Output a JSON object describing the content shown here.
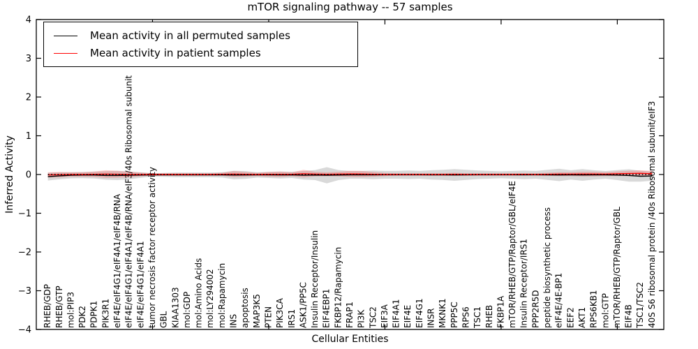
{
  "chart_data": {
    "type": "line",
    "title": "mTOR signaling pathway -- 57 samples",
    "xlabel": "Cellular Entities",
    "ylabel": "Inferred Activity",
    "ylim": [
      -4,
      4
    ],
    "yticks": [
      -4,
      -3,
      -2,
      -1,
      0,
      1,
      2,
      3,
      4
    ],
    "xlim": [
      0,
      54
    ],
    "xticks": [
      10,
      20,
      30,
      40,
      50
    ],
    "grid": false,
    "legend_position": "upper left",
    "zero_line": {
      "y": 0,
      "style": "dotted",
      "color": "#000000"
    },
    "colors": {
      "permuted": "#000000",
      "patient": "#ff0000",
      "permuted_band": "rgba(0,0,0,0.15)",
      "patient_band": "rgba(255,0,0,0.18)",
      "frame": "#000000",
      "background": "#ffffff"
    },
    "categories": [
      "RHEB/GDP",
      "RHEB/GTP",
      "mol:PIP3",
      "PDK2",
      "PDPK1",
      "PIK3R1",
      "eIF4E/eIF4G1/eIF4A1/eIF4B/RNA",
      "eIF4E/eIF4G1/eIF4A1/eIF4B/RNA/eIF3/40s Ribosomal subunit",
      "eIF4E/eIF4G1/eIF4A1",
      "tumor necrosis factor receptor activity",
      "GBL",
      "KIAA1303",
      "mol:GDP",
      "mol:Amino Acids",
      "mol:LY294002",
      "mol:Rapamycin",
      "INS",
      "apoptosis",
      "MAP3K5",
      "PTEN",
      "PIK3CA",
      "IRS1",
      "ASK1/PP5C",
      "Insulin Receptor/Insulin",
      "EIF4EBP1",
      "FKBP12/Rapamycin",
      "FRAP1",
      "PI3K",
      "TSC2",
      "EIF3A",
      "EIF4A1",
      "EIF4E",
      "EIF4G1",
      "INSR",
      "MKNK1",
      "PPP5C",
      "RPS6",
      "TSC1",
      "RHEB",
      "FKBP1A",
      "mTOR/RHEB/GTP/Raptor/GBL/eIF4E",
      "Insulin Receptor/IRS1",
      "PPP2R5D",
      "peptide biosynthetic process",
      "eIF4E/4E-BP1",
      "EEF2",
      "AKT1",
      "RPS6KB1",
      "mol:GTP",
      "mTOR/RHEB/GTP/Raptor/GBL",
      "EIF4B",
      "TSC1/TSC2",
      "40S S6 ribosomal protein /40s Ribosomal subunit/eIF3"
    ],
    "series": [
      {
        "name": "Mean activity in all permuted samples",
        "color": "#000000",
        "values": [
          -0.055,
          -0.035,
          -0.02,
          -0.015,
          -0.015,
          -0.025,
          -0.025,
          -0.02,
          -0.015,
          -0.01,
          -0.01,
          -0.01,
          -0.01,
          -0.01,
          -0.01,
          -0.01,
          -0.015,
          -0.012,
          -0.01,
          -0.01,
          -0.012,
          -0.01,
          -0.02,
          -0.015,
          -0.02,
          -0.015,
          -0.01,
          -0.01,
          -0.01,
          -0.008,
          -0.008,
          -0.008,
          -0.008,
          -0.01,
          -0.01,
          -0.012,
          -0.01,
          -0.008,
          -0.008,
          -0.008,
          -0.008,
          -0.01,
          -0.008,
          -0.01,
          -0.012,
          -0.01,
          -0.012,
          -0.01,
          -0.01,
          -0.015,
          -0.025,
          -0.045,
          -0.04
        ],
        "band_halfwidth": [
          0.1,
          0.09,
          0.08,
          0.08,
          0.09,
          0.11,
          0.12,
          0.1,
          0.07,
          0.04,
          0.05,
          0.06,
          0.06,
          0.06,
          0.06,
          0.07,
          0.11,
          0.1,
          0.07,
          0.08,
          0.09,
          0.08,
          0.11,
          0.13,
          0.21,
          0.13,
          0.1,
          0.1,
          0.11,
          0.1,
          0.1,
          0.11,
          0.1,
          0.12,
          0.13,
          0.15,
          0.13,
          0.11,
          0.1,
          0.09,
          0.1,
          0.11,
          0.1,
          0.13,
          0.16,
          0.12,
          0.15,
          0.12,
          0.1,
          0.13,
          0.16,
          0.14,
          0.12
        ]
      },
      {
        "name": "Mean activity in patient samples",
        "color": "#ff0000",
        "values": [
          -0.01,
          -0.005,
          0,
          0,
          0.005,
          0.01,
          0.005,
          0,
          0,
          0,
          0,
          0,
          0,
          0,
          0,
          0.005,
          0.01,
          0.005,
          0,
          0.005,
          0.005,
          0.005,
          0.02,
          0.01,
          0.005,
          0.01,
          0.015,
          0.012,
          0.005,
          0,
          0,
          0,
          0,
          0,
          0,
          0.005,
          0,
          0,
          0,
          0,
          0,
          0.005,
          0,
          0.005,
          0.01,
          0.01,
          0.012,
          0.012,
          0.01,
          0.02,
          0.025,
          0.03,
          0.02
        ],
        "band_halfwidth": [
          0.07,
          0.07,
          0.06,
          0.06,
          0.07,
          0.1,
          0.09,
          0.07,
          0.05,
          0.03,
          0.03,
          0.03,
          0.03,
          0.03,
          0.03,
          0.04,
          0.08,
          0.06,
          0.04,
          0.06,
          0.07,
          0.05,
          0.1,
          0.06,
          0.05,
          0.06,
          0.08,
          0.08,
          0.06,
          0.04,
          0.03,
          0.03,
          0.03,
          0.03,
          0.03,
          0.04,
          0.03,
          0.03,
          0.03,
          0.03,
          0.03,
          0.03,
          0.03,
          0.04,
          0.05,
          0.05,
          0.06,
          0.06,
          0.05,
          0.06,
          0.07,
          0.08,
          0.07
        ]
      }
    ]
  }
}
